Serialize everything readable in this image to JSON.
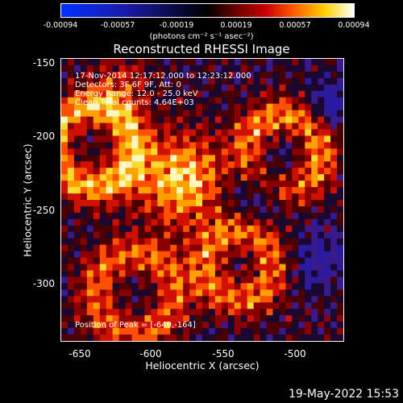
{
  "colorbar": {
    "ticks": [
      "-0.00094",
      "-0.00057",
      "-0.00019",
      "0.00019",
      "0.00057",
      "0.00094"
    ],
    "units_label": "(photons cm⁻² s⁻¹ asec⁻²)",
    "range": [
      -0.00094,
      0.00094
    ]
  },
  "plot": {
    "title": "Reconstructed RHESSI Image",
    "xlabel": "Heliocentric X (arcsec)",
    "ylabel": "Heliocentric Y (arcsec)",
    "x_ticks": [
      "-650",
      "-600",
      "-550",
      "-500"
    ],
    "y_ticks": [
      "-150",
      "-200",
      "-250",
      "-300"
    ],
    "xlim": [
      -663,
      -465
    ],
    "ylim": [
      -337,
      -147
    ],
    "annotations": {
      "time_range": "17-Nov-2014 12:17:12.000 to 12:23:12.000",
      "detectors": "Detectors: 3F 6F 9F, Att: 0",
      "energy_range": "Energy Range: 12.0 - 25.0 keV",
      "clean_counts": "Clean     Total counts: 4.64E+03",
      "peak_position": "Position of Peak = [-649,-164]"
    }
  },
  "footer": {
    "timestamp": "19-May-2022 15:53"
  }
}
